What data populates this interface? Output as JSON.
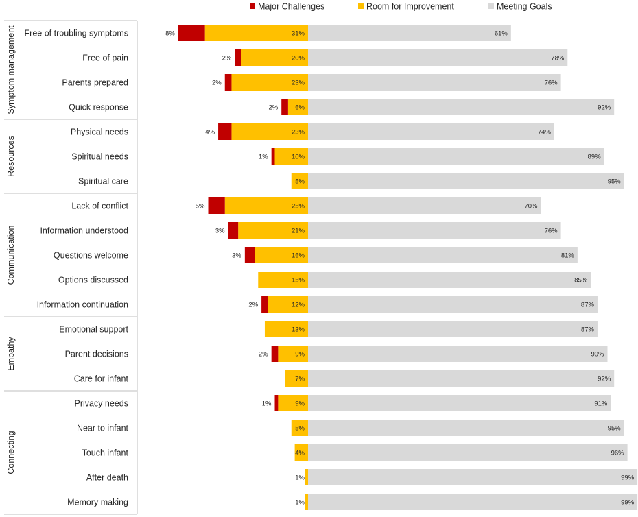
{
  "chart_data": {
    "type": "bar",
    "orientation": "horizontal-diverging-stacked",
    "title": "",
    "legend": {
      "position": "top",
      "entries": [
        "Major Challenges",
        "Room for Improvement",
        "Meeting Goals"
      ]
    },
    "colors": {
      "Major Challenges": "#c00000",
      "Room for Improvement": "#ffc000",
      "Meeting Goals": "#d9d9d9"
    },
    "groups": [
      {
        "name": "Symptom management",
        "categories": [
          "Free of troubling symptoms",
          "Free of pain",
          "Parents prepared",
          "Quick response"
        ]
      },
      {
        "name": "Resources",
        "categories": [
          "Physical needs",
          "Spiritual needs",
          "Spiritual care"
        ]
      },
      {
        "name": "Communication",
        "categories": [
          "Lack of conflict",
          "Information understood",
          "Questions welcome",
          "Options discussed",
          "Information continuation"
        ]
      },
      {
        "name": "Empathy",
        "categories": [
          "Emotional support",
          "Parent decisions",
          "Care for infant"
        ]
      },
      {
        "name": "Connecting",
        "categories": [
          "Privacy needs",
          "Near to infant",
          "Touch infant",
          "After death",
          "Memory making"
        ]
      }
    ],
    "categories": [
      "Free of troubling symptoms",
      "Free of pain",
      "Parents prepared",
      "Quick response",
      "Physical needs",
      "Spiritual needs",
      "Spiritual care",
      "Lack of conflict",
      "Information understood",
      "Questions welcome",
      "Options discussed",
      "Information continuation",
      "Emotional support",
      "Parent decisions",
      "Care for infant",
      "Privacy needs",
      "Near to infant",
      "Touch infant",
      "After death",
      "Memory making"
    ],
    "series": [
      {
        "name": "Major Challenges",
        "values": [
          8,
          2,
          2,
          2,
          4,
          1,
          0,
          5,
          3,
          3,
          0,
          2,
          0,
          2,
          0,
          1,
          0,
          0,
          0,
          0
        ],
        "labels": [
          "8%",
          "2%",
          "2%",
          "2%",
          "4%",
          "1%",
          "",
          "5%",
          "3%",
          "3%",
          "",
          "2%",
          "",
          "2%",
          "",
          "1%",
          "",
          "",
          "",
          ""
        ]
      },
      {
        "name": "Room for Improvement",
        "values": [
          31,
          20,
          23,
          6,
          23,
          10,
          5,
          25,
          21,
          16,
          15,
          12,
          13,
          9,
          7,
          9,
          5,
          4,
          1,
          1
        ],
        "labels": [
          "31%",
          "20%",
          "23%",
          "6%",
          "23%",
          "10%",
          "5%",
          "25%",
          "21%",
          "16%",
          "15%",
          "12%",
          "13%",
          "9%",
          "7%",
          "9%",
          "5%",
          "4%",
          "1%",
          "1%"
        ]
      },
      {
        "name": "Meeting Goals",
        "values": [
          61,
          78,
          76,
          92,
          74,
          89,
          95,
          70,
          76,
          81,
          85,
          87,
          87,
          90,
          92,
          91,
          95,
          96,
          99,
          99
        ],
        "labels": [
          "61%",
          "78%",
          "76%",
          "92%",
          "74%",
          "89%",
          "95%",
          "70%",
          "76%",
          "81%",
          "85%",
          "87%",
          "87%",
          "90%",
          "92%",
          "91%",
          "95%",
          "96%",
          "99%",
          "99%"
        ]
      }
    ],
    "xlim": [
      -40,
      100
    ],
    "grid": false
  }
}
